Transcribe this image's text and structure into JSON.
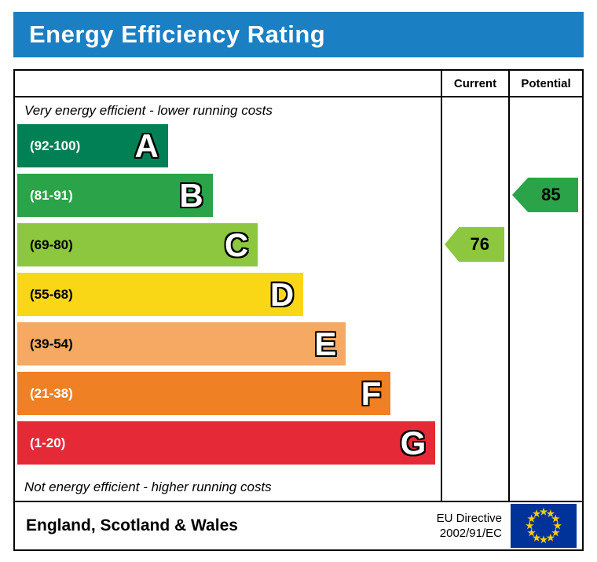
{
  "title": "Energy Efficiency Rating",
  "columns": {
    "current": "Current",
    "potential": "Potential"
  },
  "top_caption": "Very energy efficient - lower running costs",
  "bottom_caption": "Not energy efficient - higher running costs",
  "bands": [
    {
      "letter": "A",
      "range": "(92-100)",
      "color": "#008054",
      "range_text_color": "#ffffff",
      "width": "35.4%"
    },
    {
      "letter": "B",
      "range": "(81-91)",
      "color": "#2ba349",
      "range_text_color": "#ffffff",
      "width": "45.9%"
    },
    {
      "letter": "C",
      "range": "(69-80)",
      "color": "#8dc63f",
      "range_text_color": "#000000",
      "width": "56.5%"
    },
    {
      "letter": "D",
      "range": "(55-68)",
      "color": "#f9d616",
      "range_text_color": "#000000",
      "width": "67.2%"
    },
    {
      "letter": "E",
      "range": "(39-54)",
      "color": "#f5a962",
      "range_text_color": "#000000",
      "width": "77.2%"
    },
    {
      "letter": "F",
      "range": "(21-38)",
      "color": "#ef8023",
      "range_text_color": "#ffffff",
      "width": "87.7%"
    },
    {
      "letter": "G",
      "range": "(1-20)",
      "color": "#e52936",
      "range_text_color": "#ffffff",
      "width": "98.2%"
    }
  ],
  "current": {
    "value": "76",
    "band": "C",
    "color": "#8dc63f"
  },
  "potential": {
    "value": "85",
    "band": "B",
    "color": "#2ba349"
  },
  "footer": {
    "region": "England, Scotland & Wales",
    "directive_line1": "EU Directive",
    "directive_line2": "2002/91/EC"
  },
  "colors": {
    "header_blue": "#1b7fc4",
    "flag_blue": "#003399",
    "flag_star_yellow": "#ffcc00"
  },
  "chart_data": {
    "type": "bar",
    "title": "Energy Efficiency Rating",
    "categories": [
      "A",
      "B",
      "C",
      "D",
      "E",
      "F",
      "G"
    ],
    "band_ranges": [
      [
        92,
        100
      ],
      [
        81,
        91
      ],
      [
        69,
        80
      ],
      [
        55,
        68
      ],
      [
        39,
        54
      ],
      [
        21,
        38
      ],
      [
        1,
        20
      ]
    ],
    "band_labels": [
      "(92-100)",
      "(81-91)",
      "(69-80)",
      "(55-68)",
      "(39-54)",
      "(21-38)",
      "(1-20)"
    ],
    "band_colors": [
      "#008054",
      "#2ba349",
      "#8dc63f",
      "#f9d616",
      "#f5a962",
      "#ef8023",
      "#e52936"
    ],
    "bar_relative_widths": [
      0.354,
      0.459,
      0.565,
      0.672,
      0.772,
      0.877,
      0.982
    ],
    "current_rating": 76,
    "current_band": "C",
    "potential_rating": 85,
    "potential_band": "B",
    "top_label": "Very energy efficient - lower running costs",
    "bottom_label": "Not energy efficient - higher running costs",
    "footer_left": "England, Scotland & Wales",
    "footer_right": "EU Directive 2002/91/EC"
  }
}
